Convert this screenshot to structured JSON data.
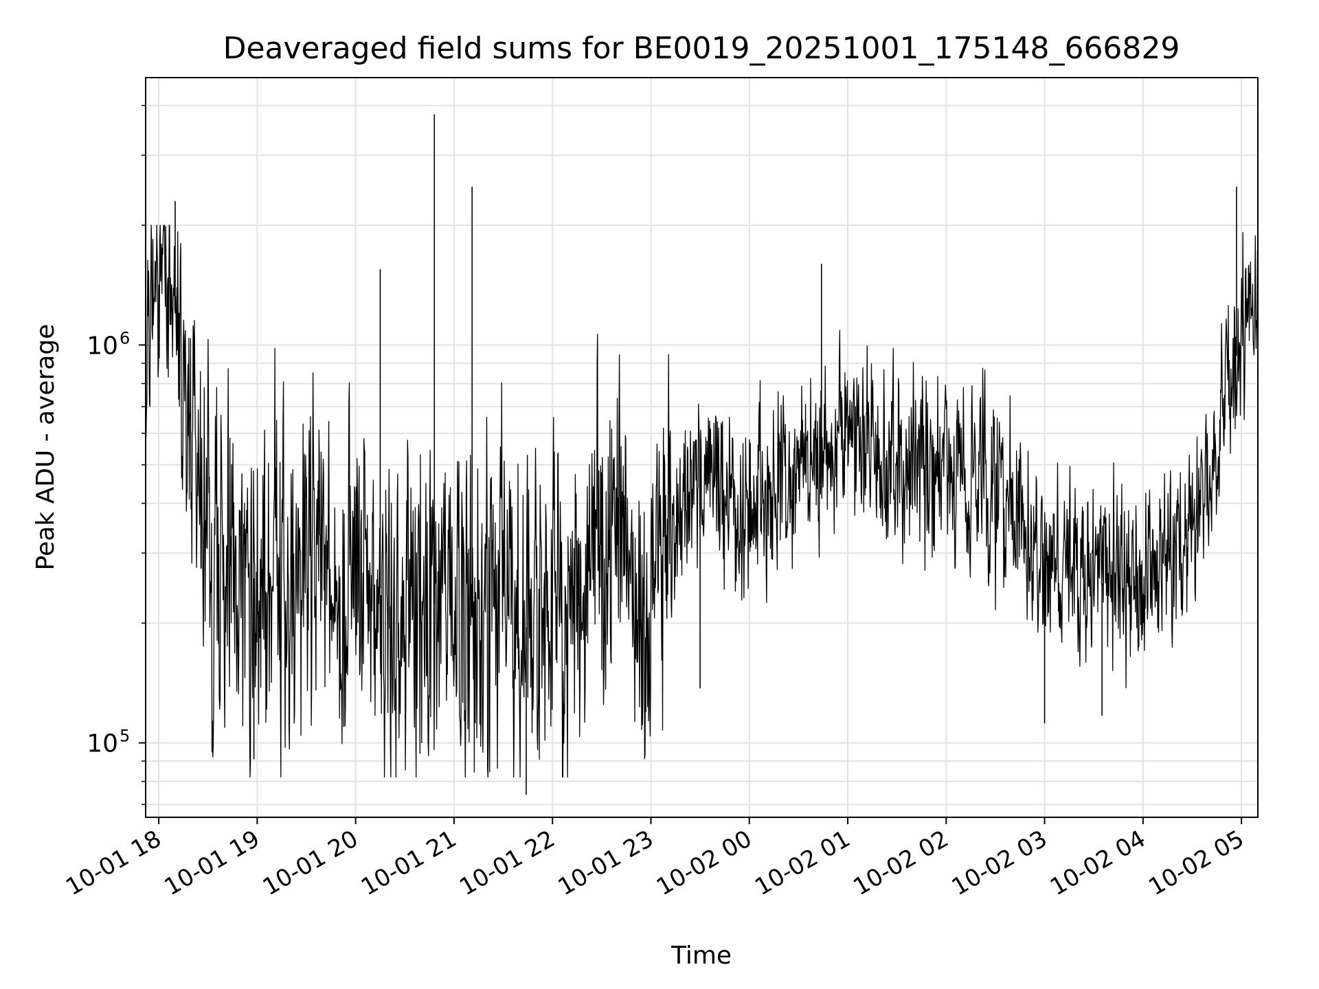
{
  "chart_data": {
    "type": "line",
    "title": "Deaveraged field sums for BE0019_20251001_175148_666829",
    "xlabel": "Time",
    "ylabel": "Peak ADU - average",
    "yscale": "log",
    "ylim": [
      65000,
      4700000
    ],
    "xlim": [
      "2025-10-01 17:52",
      "2025-10-02 05:10"
    ],
    "x_ticks": [
      "10-01 18",
      "10-01 19",
      "10-01 20",
      "10-01 21",
      "10-01 22",
      "10-01 23",
      "10-02 00",
      "10-02 01",
      "10-02 02",
      "10-02 03",
      "10-02 04",
      "10-02 05"
    ],
    "y_tick_base": "10",
    "y_ticks": [
      {
        "value": 100000,
        "exponent": "5"
      },
      {
        "value": 1000000,
        "exponent": "6"
      }
    ],
    "grid": true,
    "line_color": "#000000",
    "series": [
      {
        "x": [
          "2025-10-01 17:52",
          "2025-10-01 18:00",
          "2025-10-01 18:10",
          "2025-10-01 18:20",
          "2025-10-01 18:35",
          "2025-10-01 19:00",
          "2025-10-01 19:30",
          "2025-10-01 20:00",
          "2025-10-01 20:30",
          "2025-10-01 21:00",
          "2025-10-01 21:30",
          "2025-10-01 22:00",
          "2025-10-01 22:30",
          "2025-10-01 23:00",
          "2025-10-01 23:30",
          "2025-10-02 00:00",
          "2025-10-02 00:30",
          "2025-10-02 01:00",
          "2025-10-02 01:30",
          "2025-10-02 02:00",
          "2025-10-02 02:30",
          "2025-10-02 03:00",
          "2025-10-02 03:30",
          "2025-10-02 04:00",
          "2025-10-02 04:30",
          "2025-10-02 04:45",
          "2025-10-02 05:00",
          "2025-10-02 05:10"
        ],
        "y": [
          1100000,
          1300000,
          1200000,
          500000,
          250000,
          260000,
          250000,
          260000,
          230000,
          220000,
          200000,
          190000,
          350000,
          220000,
          480000,
          360000,
          520000,
          620000,
          520000,
          500000,
          450000,
          290000,
          250000,
          260000,
          340000,
          500000,
          1100000,
          1300000
        ]
      }
    ],
    "spikes": [
      {
        "x": "2025-10-01 20:48",
        "y": 3800000
      },
      {
        "x": "2025-10-01 21:11",
        "y": 2500000
      },
      {
        "x": "2025-10-02 04:57",
        "y": 2500000
      },
      {
        "x": "2025-10-01 18:10",
        "y": 2300000
      },
      {
        "x": "2025-10-01 21:44",
        "y": 74000
      },
      {
        "x": "2025-10-01 18:58",
        "y": 91000
      },
      {
        "x": "2025-10-02 00:44",
        "y": 1600000
      },
      {
        "x": "2025-10-01 20:15",
        "y": 1550000
      },
      {
        "x": "2025-10-01 23:30",
        "y": 137000
      },
      {
        "x": "2025-10-02 03:00",
        "y": 112000
      },
      {
        "x": "2025-10-02 03:35",
        "y": 117000
      }
    ]
  }
}
